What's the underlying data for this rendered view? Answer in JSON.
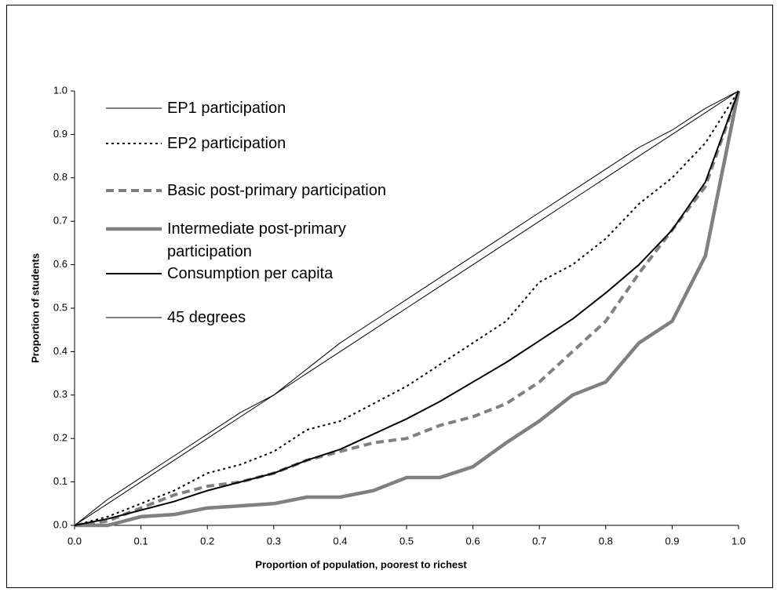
{
  "chart_data": {
    "type": "line",
    "xlabel": "Proportion of population, poorest to richest",
    "ylabel": "Proportion of students",
    "x": [
      0,
      0.05,
      0.1,
      0.15,
      0.2,
      0.25,
      0.3,
      0.35,
      0.4,
      0.45,
      0.5,
      0.55,
      0.6,
      0.65,
      0.7,
      0.75,
      0.8,
      0.85,
      0.9,
      0.95,
      1.0
    ],
    "series": [
      {
        "name": "EP1 participation",
        "color": "#000000",
        "values": [
          0,
          0.06,
          0.11,
          0.16,
          0.21,
          0.26,
          0.3,
          0.36,
          0.42,
          0.47,
          0.52,
          0.57,
          0.62,
          0.67,
          0.72,
          0.77,
          0.82,
          0.87,
          0.91,
          0.96,
          1.0
        ]
      },
      {
        "name": "EP2 participation",
        "color": "#000000",
        "values": [
          0,
          0.02,
          0.05,
          0.08,
          0.12,
          0.14,
          0.17,
          0.22,
          0.24,
          0.28,
          0.32,
          0.37,
          0.42,
          0.47,
          0.56,
          0.6,
          0.66,
          0.74,
          0.8,
          0.88,
          1.0
        ]
      },
      {
        "name": "Basic post-primary participation",
        "color": "#808080",
        "values": [
          0,
          0.01,
          0.04,
          0.07,
          0.09,
          0.1,
          0.12,
          0.15,
          0.17,
          0.19,
          0.2,
          0.23,
          0.25,
          0.28,
          0.33,
          0.4,
          0.47,
          0.58,
          0.68,
          0.78,
          1.0
        ]
      },
      {
        "name": "Intermediate post-primary participation",
        "color": "#808080",
        "values": [
          0,
          0,
          0.02,
          0.025,
          0.04,
          0.045,
          0.05,
          0.065,
          0.065,
          0.08,
          0.11,
          0.11,
          0.135,
          0.19,
          0.24,
          0.3,
          0.33,
          0.42,
          0.47,
          0.62,
          1.0
        ]
      },
      {
        "name": "Consumption per capita",
        "color": "#000000",
        "values": [
          0,
          0.015,
          0.035,
          0.055,
          0.08,
          0.1,
          0.12,
          0.15,
          0.175,
          0.21,
          0.245,
          0.285,
          0.33,
          0.375,
          0.425,
          0.475,
          0.535,
          0.6,
          0.68,
          0.79,
          1.0
        ]
      },
      {
        "name": "45 degrees",
        "color": "#000000",
        "values": [
          0,
          0.05,
          0.1,
          0.15,
          0.2,
          0.25,
          0.3,
          0.35,
          0.4,
          0.45,
          0.5,
          0.55,
          0.6,
          0.65,
          0.7,
          0.75,
          0.8,
          0.85,
          0.9,
          0.95,
          1.0
        ]
      }
    ],
    "xlim": [
      0,
      1.0
    ],
    "ylim": [
      0,
      1.0
    ],
    "xticks": [
      {
        "value": 0,
        "label": "0.0"
      },
      0.1,
      0.2,
      0.3,
      0.4,
      0.5,
      0.6,
      0.7,
      0.8,
      0.9,
      {
        "value": 1.0,
        "label": "1.0"
      }
    ],
    "yticks": [
      {
        "value": 0,
        "label": "0.0"
      },
      0.1,
      0.2,
      0.3,
      0.4,
      0.5,
      0.6,
      0.7,
      0.8,
      0.9,
      {
        "value": 1.0,
        "label": "1.0"
      }
    ],
    "legend": "upper left"
  }
}
